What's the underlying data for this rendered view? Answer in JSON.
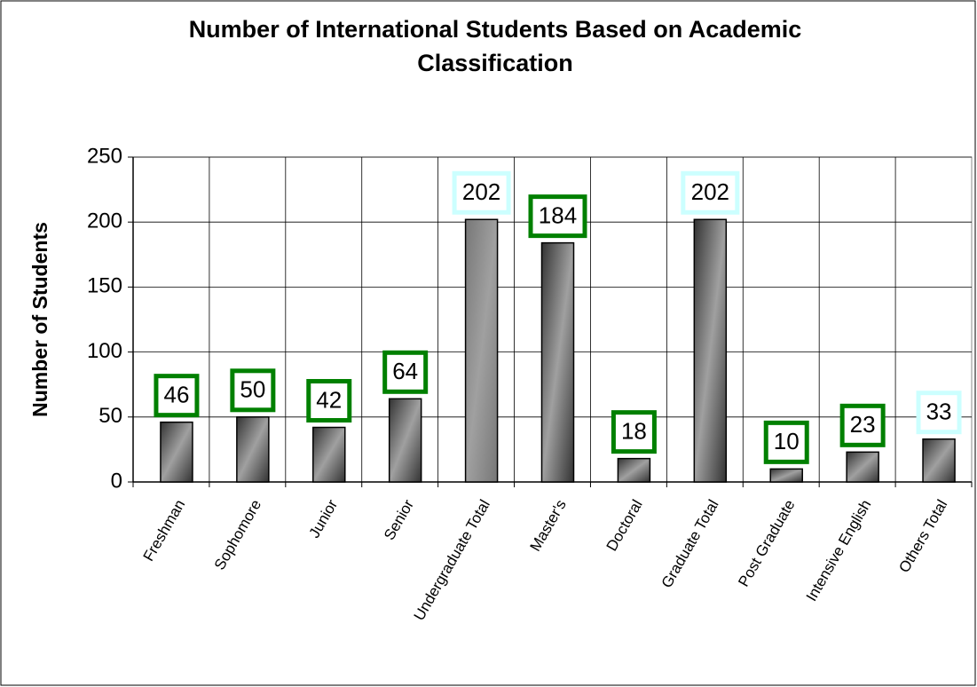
{
  "chart_data": {
    "type": "bar",
    "title": "Number of International Students Based on Academic Classification",
    "y_label": "Number of Students",
    "categories": [
      "Freshman",
      "Sophomore",
      "Junior",
      "Senior",
      "Undergraduate Total",
      "Master's",
      "Doctoral",
      "Graduate Total",
      "Post Graduate",
      "Intensive English",
      "Others Total"
    ],
    "values": [
      46,
      50,
      42,
      64,
      202,
      184,
      18,
      202,
      10,
      23,
      33
    ],
    "colors": [
      "#333333",
      "#333333",
      "#333333",
      "#333333",
      "#777777",
      "#333333",
      "#333333",
      "#333333",
      "#333333",
      "#333333",
      "#333333"
    ],
    "label_box_colors": [
      "#008000",
      "#008000",
      "#008000",
      "#008000",
      "#ccffff",
      "#008000",
      "#008000",
      "#ccffff",
      "#008000",
      "#008000",
      "#ccffff"
    ],
    "ylim": [
      0,
      250
    ],
    "yticks": [
      0,
      50,
      100,
      150,
      200,
      250
    ],
    "grid": true
  }
}
